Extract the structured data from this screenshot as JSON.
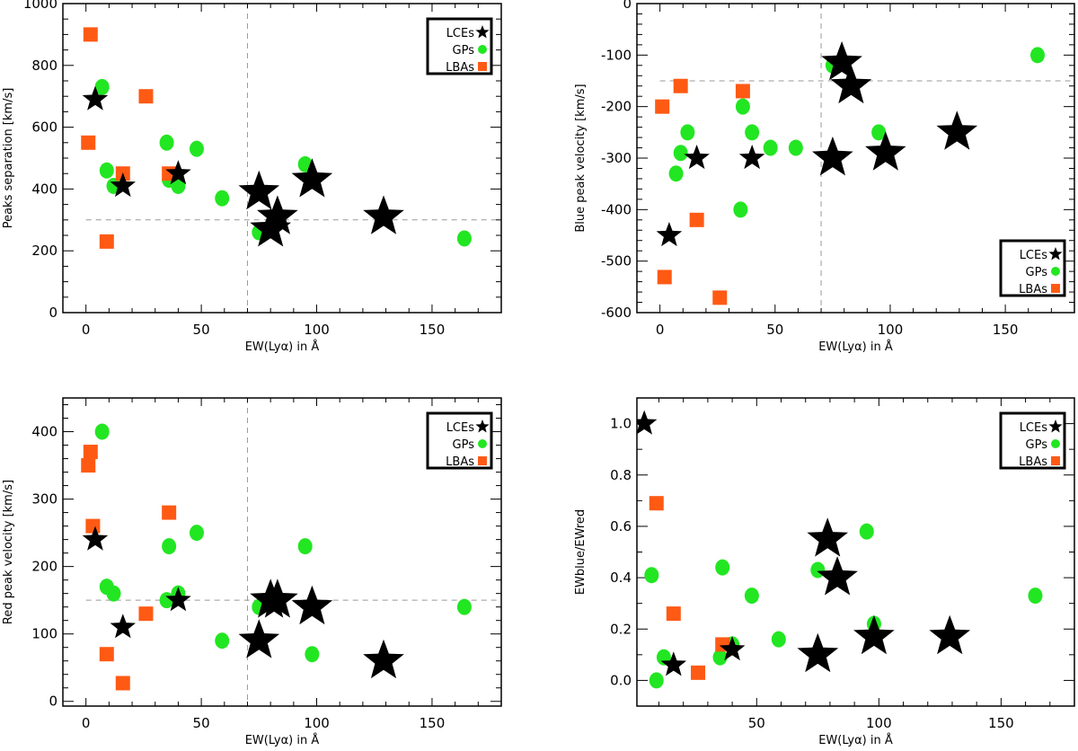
{
  "colors": {
    "LCEs": "#000000",
    "GPs": "#22e622",
    "LBAs": "#ff5a14",
    "reference_line": "#999999"
  },
  "chart_data": [
    {
      "type": "scatter",
      "xlabel": "EW(Lyα) in Å",
      "ylabel": "Peaks separation [km/s]",
      "xlim": [
        -10,
        180
      ],
      "ylim": [
        0,
        1000
      ],
      "xticks": [
        {
          "v": 0,
          "label": "0"
        },
        {
          "v": 50,
          "label": "50"
        },
        {
          "v": 100,
          "label": "100"
        },
        {
          "v": 150,
          "label": "150"
        }
      ],
      "xminor": 10,
      "yticks": [
        {
          "v": 0,
          "label": "0"
        },
        {
          "v": 200,
          "label": "200"
        },
        {
          "v": 400,
          "label": "400"
        },
        {
          "v": 600,
          "label": "600"
        },
        {
          "v": 800,
          "label": "800"
        },
        {
          "v": 1000,
          "label": "1000"
        }
      ],
      "yminor": 50,
      "reference_lines": {
        "x": 70,
        "y": 300
      },
      "legend": "top-right",
      "series": [
        {
          "name": "LCEs",
          "marker": "star",
          "points": [
            {
              "x": 4,
              "y": 690,
              "size": "small"
            },
            {
              "x": 16,
              "y": 410,
              "size": "small"
            },
            {
              "x": 40,
              "y": 450,
              "size": "small"
            },
            {
              "x": 75,
              "y": 390,
              "size": "large"
            },
            {
              "x": 80,
              "y": 270,
              "size": "large"
            },
            {
              "x": 83,
              "y": 310,
              "size": "large"
            },
            {
              "x": 98,
              "y": 430,
              "size": "large"
            },
            {
              "x": 129,
              "y": 310,
              "size": "large"
            }
          ]
        },
        {
          "name": "GPs",
          "marker": "circle",
          "points": [
            {
              "x": 7,
              "y": 730
            },
            {
              "x": 9,
              "y": 460
            },
            {
              "x": 12,
              "y": 410
            },
            {
              "x": 35,
              "y": 550
            },
            {
              "x": 36,
              "y": 430
            },
            {
              "x": 40,
              "y": 410
            },
            {
              "x": 48,
              "y": 530
            },
            {
              "x": 59,
              "y": 370
            },
            {
              "x": 75,
              "y": 260
            },
            {
              "x": 95,
              "y": 480
            },
            {
              "x": 164,
              "y": 240
            }
          ]
        },
        {
          "name": "LBAs",
          "marker": "square",
          "points": [
            {
              "x": 2,
              "y": 900
            },
            {
              "x": 1,
              "y": 550
            },
            {
              "x": 16,
              "y": 450
            },
            {
              "x": 36,
              "y": 450
            },
            {
              "x": 26,
              "y": 700
            },
            {
              "x": 9,
              "y": 230
            }
          ]
        }
      ]
    },
    {
      "type": "scatter",
      "xlabel": "EW(Lyα) in Å",
      "ylabel": "Blue peak velocity [km/s]",
      "xlim": [
        -10,
        180
      ],
      "ylim": [
        -600,
        0
      ],
      "xticks": [
        {
          "v": 0,
          "label": "0"
        },
        {
          "v": 50,
          "label": "50"
        },
        {
          "v": 100,
          "label": "100"
        },
        {
          "v": 150,
          "label": "150"
        }
      ],
      "xminor": 10,
      "yticks": [
        {
          "v": 0,
          "label": "0"
        },
        {
          "v": -100,
          "label": "-100"
        },
        {
          "v": -200,
          "label": "-200"
        },
        {
          "v": -300,
          "label": "-300"
        },
        {
          "v": -400,
          "label": "-400"
        },
        {
          "v": -500,
          "label": "-500"
        },
        {
          "v": -600,
          "label": "-600"
        }
      ],
      "yminor": 20,
      "reference_lines": {
        "x": 70,
        "y": -150
      },
      "legend": "bottom-right",
      "series": [
        {
          "name": "LCEs",
          "marker": "star",
          "points": [
            {
              "x": 4,
              "y": -450,
              "size": "small"
            },
            {
              "x": 16,
              "y": -300,
              "size": "small"
            },
            {
              "x": 40,
              "y": -300,
              "size": "small"
            },
            {
              "x": 79,
              "y": -115,
              "size": "large"
            },
            {
              "x": 83,
              "y": -160,
              "size": "large"
            },
            {
              "x": 75,
              "y": -300,
              "size": "large"
            },
            {
              "x": 98,
              "y": -290,
              "size": "large"
            },
            {
              "x": 129,
              "y": -250,
              "size": "large"
            }
          ]
        },
        {
          "name": "GPs",
          "marker": "circle",
          "points": [
            {
              "x": 75,
              "y": -120
            },
            {
              "x": 164,
              "y": -100
            },
            {
              "x": 36,
              "y": -200
            },
            {
              "x": 12,
              "y": -250
            },
            {
              "x": 40,
              "y": -250
            },
            {
              "x": 9,
              "y": -290
            },
            {
              "x": 7,
              "y": -330
            },
            {
              "x": 48,
              "y": -280
            },
            {
              "x": 59,
              "y": -280
            },
            {
              "x": 35,
              "y": -400
            },
            {
              "x": 95,
              "y": -250
            }
          ]
        },
        {
          "name": "LBAs",
          "marker": "square",
          "points": [
            {
              "x": 1,
              "y": -200
            },
            {
              "x": 9,
              "y": -160
            },
            {
              "x": 36,
              "y": -170
            },
            {
              "x": 16,
              "y": -420
            },
            {
              "x": 2,
              "y": -531
            },
            {
              "x": 26,
              "y": -571
            }
          ]
        }
      ]
    },
    {
      "type": "scatter",
      "xlabel": "EW(Lyα) in Å",
      "ylabel": "Red peak velocity [km/s]",
      "xlim": [
        -10,
        180
      ],
      "ylim": [
        -7,
        450
      ],
      "xticks": [
        {
          "v": 0,
          "label": "0"
        },
        {
          "v": 50,
          "label": "50"
        },
        {
          "v": 100,
          "label": "100"
        },
        {
          "v": 150,
          "label": "150"
        }
      ],
      "xminor": 10,
      "yticks": [
        {
          "v": 0,
          "label": "0"
        },
        {
          "v": 100,
          "label": "100"
        },
        {
          "v": 200,
          "label": "200"
        },
        {
          "v": 300,
          "label": "300"
        },
        {
          "v": 400,
          "label": "400"
        }
      ],
      "yminor": 20,
      "reference_lines": {
        "x": 70,
        "y": 150
      },
      "legend": "top-right",
      "series": [
        {
          "name": "LCEs",
          "marker": "star",
          "points": [
            {
              "x": 4,
              "y": 240,
              "size": "small"
            },
            {
              "x": 16,
              "y": 110,
              "size": "small"
            },
            {
              "x": 40,
              "y": 150,
              "size": "small"
            },
            {
              "x": 75,
              "y": 90,
              "size": "large"
            },
            {
              "x": 80,
              "y": 150,
              "size": "large"
            },
            {
              "x": 83,
              "y": 150,
              "size": "large"
            },
            {
              "x": 98,
              "y": 140,
              "size": "large"
            },
            {
              "x": 129,
              "y": 60,
              "size": "large"
            }
          ]
        },
        {
          "name": "GPs",
          "marker": "circle",
          "points": [
            {
              "x": 7,
              "y": 400
            },
            {
              "x": 9,
              "y": 170
            },
            {
              "x": 12,
              "y": 160
            },
            {
              "x": 36,
              "y": 230
            },
            {
              "x": 48,
              "y": 250
            },
            {
              "x": 35,
              "y": 150
            },
            {
              "x": 40,
              "y": 160
            },
            {
              "x": 59,
              "y": 90
            },
            {
              "x": 75,
              "y": 140
            },
            {
              "x": 95,
              "y": 230
            },
            {
              "x": 98,
              "y": 70
            },
            {
              "x": 164,
              "y": 140
            }
          ]
        },
        {
          "name": "LBAs",
          "marker": "square",
          "points": [
            {
              "x": 2,
              "y": 370
            },
            {
              "x": 1,
              "y": 350
            },
            {
              "x": 3,
              "y": 260
            },
            {
              "x": 36,
              "y": 280
            },
            {
              "x": 26,
              "y": 130
            },
            {
              "x": 9,
              "y": 70
            },
            {
              "x": 16,
              "y": 27
            }
          ]
        }
      ]
    },
    {
      "type": "scatter",
      "xlabel": "EW(Lyα) in Å",
      "ylabel": "EWblue/EWred",
      "xlim": [
        1,
        180
      ],
      "ylim": [
        -0.1,
        1.1
      ],
      "xticks": [
        {
          "v": 50,
          "label": "50"
        },
        {
          "v": 100,
          "label": "100"
        },
        {
          "v": 150,
          "label": "150"
        }
      ],
      "xminor": 10,
      "yticks": [
        {
          "v": 0,
          "label": "0.0"
        },
        {
          "v": 0.2,
          "label": "0.2"
        },
        {
          "v": 0.4,
          "label": "0.4"
        },
        {
          "v": 0.6,
          "label": "0.6"
        },
        {
          "v": 0.8,
          "label": "0.8"
        },
        {
          "v": 1.0,
          "label": "1.0"
        }
      ],
      "yminor": 0.1,
      "reference_lines": {},
      "legend": "top-right",
      "series": [
        {
          "name": "LCEs",
          "marker": "star",
          "points": [
            {
              "x": 4,
              "y": 1.0,
              "size": "small"
            },
            {
              "x": 16,
              "y": 0.06,
              "size": "small"
            },
            {
              "x": 40,
              "y": 0.12,
              "size": "small"
            },
            {
              "x": 79,
              "y": 0.55,
              "size": "large"
            },
            {
              "x": 83,
              "y": 0.4,
              "size": "large"
            },
            {
              "x": 75,
              "y": 0.1,
              "size": "large"
            },
            {
              "x": 98,
              "y": 0.17,
              "size": "large"
            },
            {
              "x": 129,
              "y": 0.17,
              "size": "large"
            }
          ]
        },
        {
          "name": "GPs",
          "marker": "circle",
          "points": [
            {
              "x": 7,
              "y": 0.41
            },
            {
              "x": 9,
              "y": 0.0
            },
            {
              "x": 12,
              "y": 0.09
            },
            {
              "x": 36,
              "y": 0.44
            },
            {
              "x": 48,
              "y": 0.33
            },
            {
              "x": 35,
              "y": 0.09
            },
            {
              "x": 40,
              "y": 0.14
            },
            {
              "x": 59,
              "y": 0.16
            },
            {
              "x": 75,
              "y": 0.43
            },
            {
              "x": 95,
              "y": 0.58
            },
            {
              "x": 98,
              "y": 0.22
            },
            {
              "x": 164,
              "y": 0.33
            }
          ]
        },
        {
          "name": "LBAs",
          "marker": "square",
          "points": [
            {
              "x": 9,
              "y": 0.69
            },
            {
              "x": 16,
              "y": 0.26
            },
            {
              "x": 36,
              "y": 0.14
            },
            {
              "x": 26,
              "y": 0.03
            }
          ]
        }
      ]
    }
  ]
}
